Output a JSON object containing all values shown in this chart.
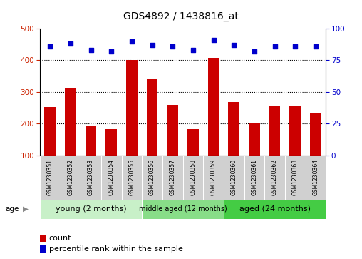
{
  "title": "GDS4892 / 1438816_at",
  "samples": [
    "GSM1230351",
    "GSM1230352",
    "GSM1230353",
    "GSM1230354",
    "GSM1230355",
    "GSM1230356",
    "GSM1230357",
    "GSM1230358",
    "GSM1230359",
    "GSM1230360",
    "GSM1230361",
    "GSM1230362",
    "GSM1230363",
    "GSM1230364"
  ],
  "counts": [
    252,
    310,
    195,
    182,
    402,
    340,
    260,
    182,
    407,
    268,
    204,
    257,
    256,
    232
  ],
  "percentiles": [
    86,
    88,
    83,
    82,
    90,
    87,
    86,
    83,
    91,
    87,
    82,
    86,
    86,
    86
  ],
  "groups": [
    {
      "label": "young (2 months)",
      "start": 0,
      "end": 5,
      "color": "#c8f0c8",
      "fontsize": 8
    },
    {
      "label": "middle aged (12 months)",
      "start": 5,
      "end": 9,
      "color": "#88dd88",
      "fontsize": 7
    },
    {
      "label": "aged (24 months)",
      "start": 9,
      "end": 14,
      "color": "#44cc44",
      "fontsize": 8
    }
  ],
  "ylim_left": [
    100,
    500
  ],
  "ylim_right": [
    0,
    100
  ],
  "bar_color": "#cc0000",
  "dot_color": "#0000cc",
  "yticks_left": [
    100,
    200,
    300,
    400,
    500
  ],
  "yticks_right": [
    0,
    25,
    50,
    75,
    100
  ],
  "left_label_color": "#cc2200",
  "right_label_color": "#0000cc",
  "legend_count_label": "count",
  "legend_pct_label": "percentile rank within the sample",
  "sample_box_color": "#d0d0d0",
  "age_arrow_color": "#888888"
}
